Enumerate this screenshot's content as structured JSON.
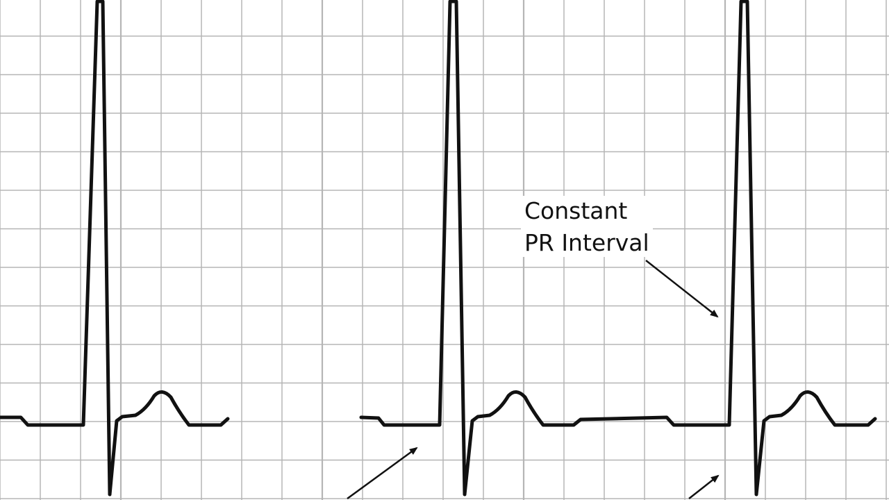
{
  "annotation": {
    "lines": [
      "Constant",
      "PR Interval"
    ]
  }
}
